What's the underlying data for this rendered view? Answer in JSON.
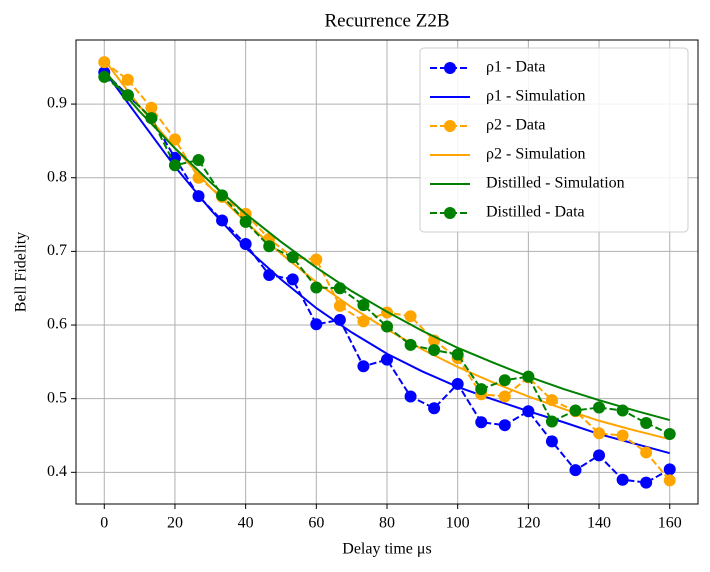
{
  "chart_data": {
    "type": "line",
    "title": "Recurrence Z2B",
    "xlabel": "Delay time μs",
    "ylabel": "Bell Fidelity",
    "xlim": [
      -8,
      168
    ],
    "ylim": [
      0.357,
      0.987
    ],
    "xticks": [
      0,
      20,
      40,
      60,
      80,
      100,
      120,
      140,
      160
    ],
    "yticks": [
      0.4,
      0.5,
      0.6,
      0.7,
      0.8,
      0.9
    ],
    "grid": true,
    "legend": "upper right",
    "series": [
      {
        "name": "ρ1 - Data",
        "color": "#0000ff",
        "linestyle": "dashed",
        "marker": "circle",
        "x": [
          0,
          6.67,
          13.33,
          20,
          26.67,
          33.33,
          40,
          46.67,
          53.33,
          60,
          66.67,
          73.33,
          80,
          86.67,
          93.33,
          100,
          106.67,
          113.33,
          120,
          126.67,
          133.33,
          140,
          146.67,
          153.33,
          160
        ],
        "values": [
          0.943,
          0.912,
          0.881,
          0.827,
          0.775,
          0.742,
          0.71,
          0.668,
          0.662,
          0.601,
          0.607,
          0.544,
          0.553,
          0.503,
          0.487,
          0.52,
          0.468,
          0.464,
          0.483,
          0.442,
          0.403,
          0.423,
          0.39,
          0.386,
          0.404
        ]
      },
      {
        "name": "ρ1 - Simulation",
        "color": "#0000ff",
        "linestyle": "solid",
        "marker": "none",
        "x": [
          0,
          10,
          20,
          30,
          40,
          50,
          60,
          70,
          80,
          90,
          100,
          110,
          120,
          130,
          140,
          150,
          160
        ],
        "values": [
          0.945,
          0.88,
          0.815,
          0.757,
          0.705,
          0.662,
          0.623,
          0.59,
          0.561,
          0.537,
          0.516,
          0.499,
          0.483,
          0.468,
          0.452,
          0.439,
          0.426
        ]
      },
      {
        "name": "ρ2 - Data",
        "color": "#ffa500",
        "linestyle": "dashed",
        "marker": "circle",
        "x": [
          0,
          6.67,
          13.33,
          20,
          26.67,
          33.33,
          40,
          46.67,
          53.33,
          60,
          66.67,
          73.33,
          80,
          86.67,
          93.33,
          100,
          106.67,
          113.33,
          120,
          126.67,
          133.33,
          140,
          146.67,
          153.33,
          160
        ],
        "values": [
          0.957,
          0.933,
          0.895,
          0.852,
          0.8,
          0.774,
          0.751,
          0.717,
          0.692,
          0.689,
          0.626,
          0.605,
          0.617,
          0.612,
          0.579,
          0.555,
          0.506,
          0.503,
          0.529,
          0.498,
          0.483,
          0.453,
          0.45,
          0.427,
          0.389
        ]
      },
      {
        "name": "ρ2 - Simulation",
        "color": "#ffa500",
        "linestyle": "solid",
        "marker": "none",
        "x": [
          0,
          10,
          20,
          30,
          40,
          50,
          60,
          70,
          80,
          90,
          100,
          110,
          120,
          130,
          140,
          150,
          160
        ],
        "values": [
          0.96,
          0.897,
          0.84,
          0.787,
          0.74,
          0.697,
          0.658,
          0.624,
          0.594,
          0.567,
          0.543,
          0.522,
          0.503,
          0.486,
          0.47,
          0.457,
          0.445
        ]
      },
      {
        "name": "Distilled - Simulation",
        "color": "#008000",
        "linestyle": "solid",
        "marker": "none",
        "x": [
          0,
          10,
          20,
          30,
          40,
          50,
          60,
          70,
          80,
          90,
          100,
          110,
          120,
          130,
          140,
          150,
          160
        ],
        "values": [
          0.945,
          0.89,
          0.84,
          0.794,
          0.751,
          0.713,
          0.678,
          0.646,
          0.618,
          0.592,
          0.569,
          0.549,
          0.53,
          0.513,
          0.498,
          0.484,
          0.471
        ]
      },
      {
        "name": "Distilled - Data",
        "color": "#008000",
        "linestyle": "dashed",
        "marker": "circle",
        "x": [
          0,
          6.67,
          13.33,
          20,
          26.67,
          33.33,
          40,
          46.67,
          53.33,
          60,
          66.67,
          73.33,
          80,
          86.67,
          93.33,
          100,
          106.67,
          113.33,
          120,
          126.67,
          133.33,
          140,
          146.67,
          153.33,
          160
        ],
        "values": [
          0.937,
          0.912,
          0.881,
          0.817,
          0.824,
          0.776,
          0.74,
          0.707,
          0.692,
          0.651,
          0.65,
          0.627,
          0.598,
          0.573,
          0.566,
          0.56,
          0.513,
          0.525,
          0.53,
          0.469,
          0.484,
          0.488,
          0.484,
          0.467,
          0.452
        ]
      }
    ]
  }
}
